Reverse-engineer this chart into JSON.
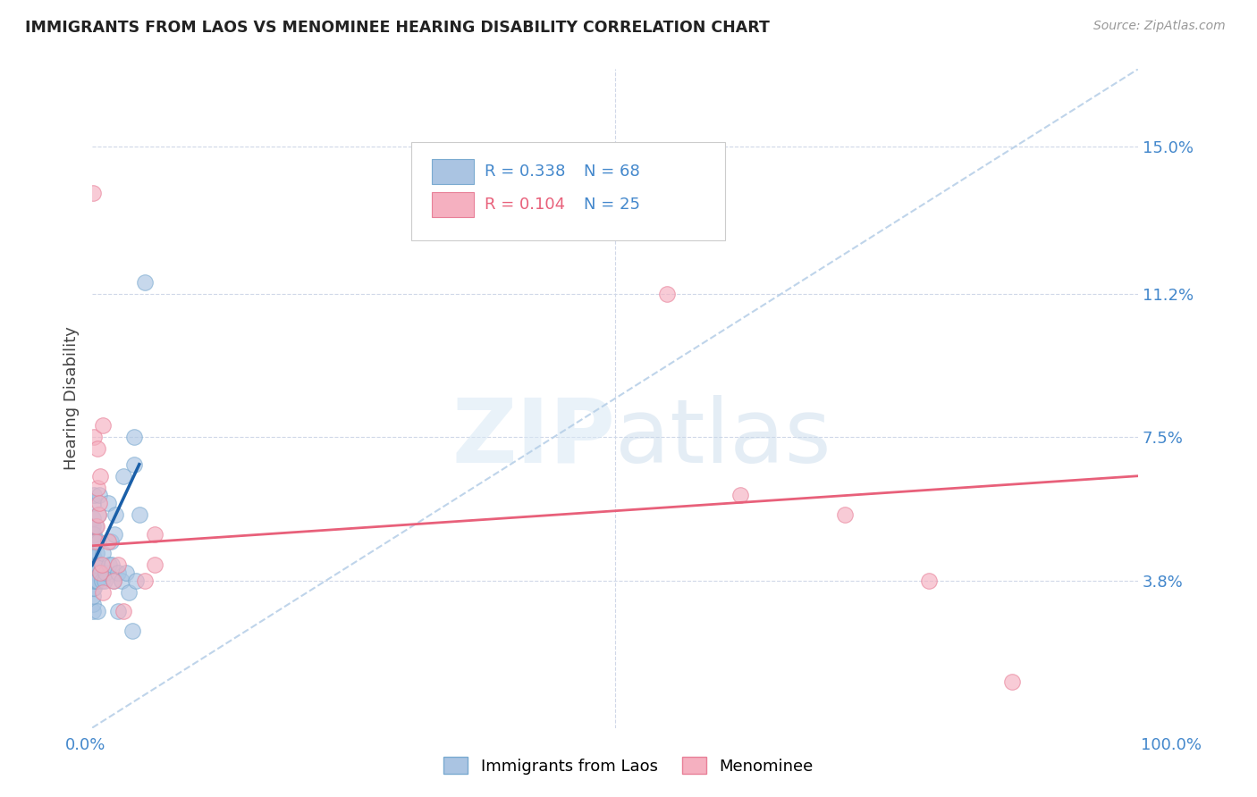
{
  "title": "IMMIGRANTS FROM LAOS VS MENOMINEE HEARING DISABILITY CORRELATION CHART",
  "source": "Source: ZipAtlas.com",
  "ylabel": "Hearing Disability",
  "yticks": [
    0.038,
    0.075,
    0.112,
    0.15
  ],
  "ytick_labels": [
    "3.8%",
    "7.5%",
    "11.2%",
    "15.0%"
  ],
  "xmin": 0.0,
  "xmax": 1.0,
  "ymin": 0.0,
  "ymax": 0.17,
  "blue_color": "#aac4e2",
  "blue_edge": "#7aaad0",
  "pink_color": "#f5b0c0",
  "pink_edge": "#e88098",
  "blue_line_color": "#1a5fa8",
  "pink_line_color": "#e8607a",
  "diag_color": "#b8d0e8",
  "background": "#ffffff",
  "grid_color": "#d0d8e8",
  "blue_x": [
    0.0,
    0.0,
    0.0,
    0.0,
    0.0,
    0.0,
    0.0,
    0.0,
    0.001,
    0.001,
    0.001,
    0.001,
    0.001,
    0.001,
    0.001,
    0.001,
    0.001,
    0.001,
    0.001,
    0.001,
    0.001,
    0.001,
    0.002,
    0.002,
    0.002,
    0.002,
    0.002,
    0.002,
    0.002,
    0.002,
    0.003,
    0.003,
    0.003,
    0.003,
    0.003,
    0.004,
    0.004,
    0.004,
    0.005,
    0.005,
    0.005,
    0.006,
    0.006,
    0.007,
    0.008,
    0.009,
    0.01,
    0.012,
    0.013,
    0.015,
    0.016,
    0.018,
    0.019,
    0.02,
    0.021,
    0.022,
    0.025,
    0.025,
    0.028,
    0.03,
    0.032,
    0.035,
    0.038,
    0.04,
    0.04,
    0.042,
    0.045,
    0.05
  ],
  "blue_y": [
    0.038,
    0.04,
    0.042,
    0.044,
    0.046,
    0.048,
    0.05,
    0.052,
    0.03,
    0.032,
    0.034,
    0.036,
    0.038,
    0.04,
    0.042,
    0.044,
    0.046,
    0.048,
    0.05,
    0.052,
    0.054,
    0.058,
    0.036,
    0.038,
    0.04,
    0.042,
    0.044,
    0.048,
    0.05,
    0.06,
    0.038,
    0.04,
    0.042,
    0.048,
    0.052,
    0.038,
    0.042,
    0.045,
    0.03,
    0.038,
    0.042,
    0.048,
    0.055,
    0.06,
    0.04,
    0.038,
    0.045,
    0.038,
    0.04,
    0.058,
    0.042,
    0.048,
    0.042,
    0.038,
    0.05,
    0.055,
    0.03,
    0.04,
    0.038,
    0.065,
    0.04,
    0.035,
    0.025,
    0.075,
    0.068,
    0.038,
    0.055,
    0.115
  ],
  "pink_x": [
    0.001,
    0.002,
    0.003,
    0.004,
    0.005,
    0.005,
    0.006,
    0.007,
    0.008,
    0.008,
    0.009,
    0.01,
    0.01,
    0.015,
    0.02,
    0.025,
    0.03,
    0.05,
    0.06,
    0.06,
    0.55,
    0.62,
    0.72,
    0.8,
    0.88
  ],
  "pink_y": [
    0.138,
    0.075,
    0.048,
    0.052,
    0.062,
    0.072,
    0.055,
    0.058,
    0.04,
    0.065,
    0.042,
    0.078,
    0.035,
    0.048,
    0.038,
    0.042,
    0.03,
    0.038,
    0.05,
    0.042,
    0.112,
    0.06,
    0.055,
    0.038,
    0.012
  ],
  "blue_trend_x": [
    0.0,
    0.045
  ],
  "blue_trend_y": [
    0.042,
    0.068
  ],
  "pink_trend_x": [
    0.0,
    1.0
  ],
  "pink_trend_y": [
    0.047,
    0.065
  ]
}
